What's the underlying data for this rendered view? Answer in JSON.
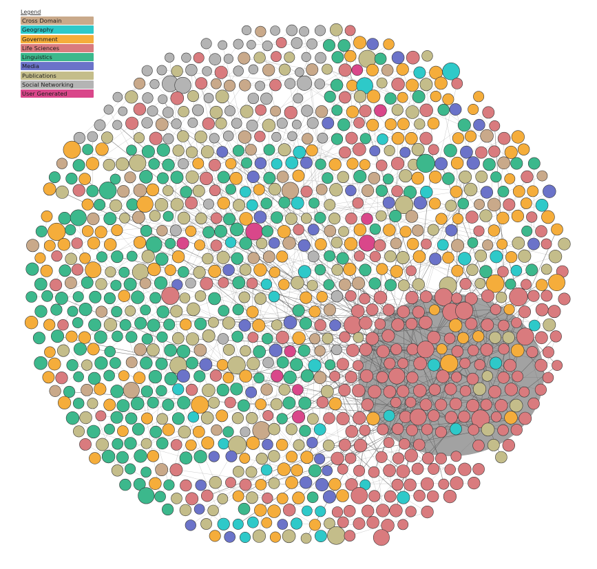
{
  "legend": {
    "title": "Legend",
    "items": [
      {
        "label": "Cross Domain",
        "color": "#c9a98a"
      },
      {
        "label": "Geography",
        "color": "#2ec9c9"
      },
      {
        "label": "Government",
        "color": "#f5ad3b"
      },
      {
        "label": "Life Sciences",
        "color": "#d97b7e"
      },
      {
        "label": "Linguistics",
        "color": "#3cb88c"
      },
      {
        "label": "Media",
        "color": "#6b73c9"
      },
      {
        "label": "Publications",
        "color": "#c4bd8a"
      },
      {
        "label": "Social Networking",
        "color": "#b4b4b4"
      },
      {
        "label": "User Generated",
        "color": "#d9478a"
      }
    ]
  },
  "graph": {
    "edge_color": "#555555",
    "node_outline": "#333333"
  }
}
